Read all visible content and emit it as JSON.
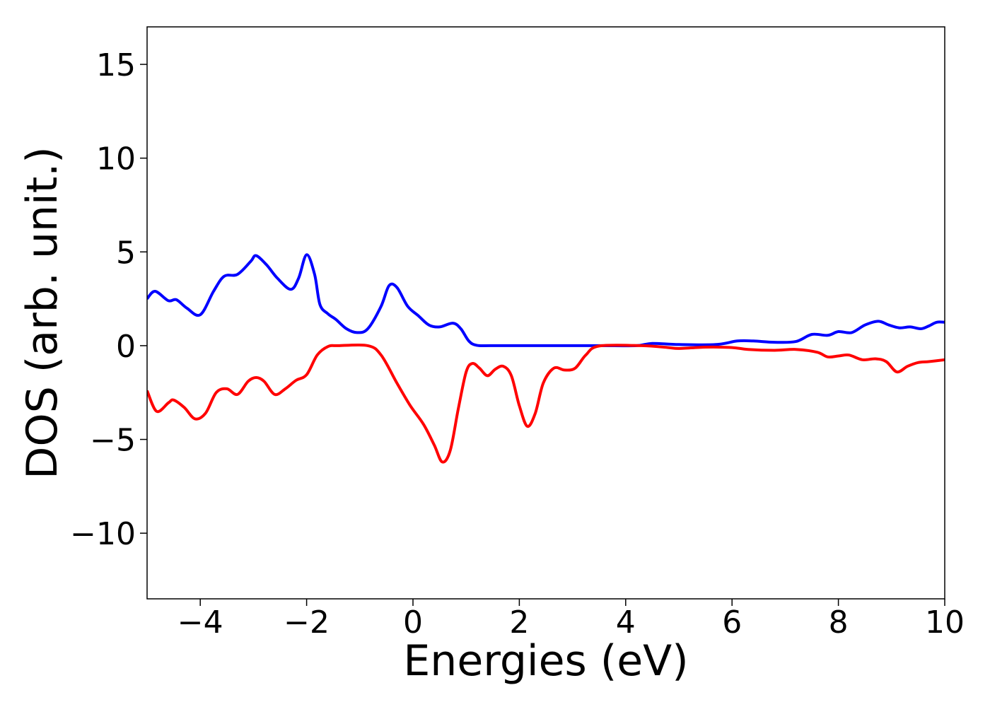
{
  "chart_data": {
    "type": "line",
    "title": "",
    "xlabel": "Energies (eV)",
    "ylabel": "DOS (arb. unit.)",
    "xlim": [
      -5,
      10
    ],
    "ylim": [
      -13.5,
      17
    ],
    "x_ticks": [
      -4,
      -2,
      0,
      2,
      4,
      6,
      8,
      10
    ],
    "x_tick_labels": [
      "−4",
      "−2",
      "0",
      "2",
      "4",
      "6",
      "8",
      "10"
    ],
    "y_ticks": [
      -10,
      -5,
      0,
      5,
      10,
      15
    ],
    "y_tick_labels": [
      "−10",
      "−5",
      "0",
      "5",
      "10",
      "15"
    ],
    "grid": false,
    "legend": "none",
    "series": [
      {
        "color": "#0000ff",
        "points": [
          [
            -5.0,
            2.5
          ],
          [
            -4.85,
            2.9
          ],
          [
            -4.6,
            2.4
          ],
          [
            -4.45,
            2.45
          ],
          [
            -4.25,
            2.0
          ],
          [
            -4.0,
            1.65
          ],
          [
            -3.75,
            2.9
          ],
          [
            -3.55,
            3.7
          ],
          [
            -3.3,
            3.8
          ],
          [
            -3.05,
            4.5
          ],
          [
            -2.95,
            4.8
          ],
          [
            -2.75,
            4.3
          ],
          [
            -2.55,
            3.6
          ],
          [
            -2.3,
            3.0
          ],
          [
            -2.15,
            3.6
          ],
          [
            -2.0,
            4.85
          ],
          [
            -1.85,
            3.8
          ],
          [
            -1.75,
            2.2
          ],
          [
            -1.6,
            1.7
          ],
          [
            -1.45,
            1.4
          ],
          [
            -1.25,
            0.9
          ],
          [
            -1.05,
            0.7
          ],
          [
            -0.85,
            0.9
          ],
          [
            -0.6,
            2.1
          ],
          [
            -0.45,
            3.2
          ],
          [
            -0.3,
            3.1
          ],
          [
            -0.1,
            2.1
          ],
          [
            0.1,
            1.6
          ],
          [
            0.3,
            1.1
          ],
          [
            0.5,
            1.0
          ],
          [
            0.75,
            1.2
          ],
          [
            0.9,
            0.9
          ],
          [
            1.05,
            0.25
          ],
          [
            1.2,
            0.02
          ],
          [
            1.5,
            0.0
          ],
          [
            2.5,
            0.0
          ],
          [
            3.5,
            0.0
          ],
          [
            4.2,
            0.0
          ],
          [
            4.5,
            0.12
          ],
          [
            5.0,
            0.06
          ],
          [
            5.7,
            0.06
          ],
          [
            6.1,
            0.25
          ],
          [
            6.4,
            0.25
          ],
          [
            6.8,
            0.18
          ],
          [
            7.2,
            0.22
          ],
          [
            7.5,
            0.6
          ],
          [
            7.8,
            0.55
          ],
          [
            8.0,
            0.75
          ],
          [
            8.25,
            0.7
          ],
          [
            8.5,
            1.1
          ],
          [
            8.75,
            1.3
          ],
          [
            8.95,
            1.1
          ],
          [
            9.15,
            0.95
          ],
          [
            9.35,
            1.0
          ],
          [
            9.55,
            0.9
          ],
          [
            9.7,
            1.05
          ],
          [
            9.85,
            1.25
          ],
          [
            10.0,
            1.25
          ]
        ]
      },
      {
        "color": "#ff0000",
        "points": [
          [
            -5.0,
            -2.4
          ],
          [
            -4.82,
            -3.5
          ],
          [
            -4.6,
            -3.05
          ],
          [
            -4.5,
            -2.9
          ],
          [
            -4.3,
            -3.3
          ],
          [
            -4.1,
            -3.9
          ],
          [
            -3.9,
            -3.6
          ],
          [
            -3.7,
            -2.5
          ],
          [
            -3.5,
            -2.3
          ],
          [
            -3.3,
            -2.6
          ],
          [
            -3.1,
            -1.9
          ],
          [
            -2.95,
            -1.7
          ],
          [
            -2.8,
            -1.9
          ],
          [
            -2.6,
            -2.6
          ],
          [
            -2.4,
            -2.3
          ],
          [
            -2.2,
            -1.85
          ],
          [
            -2.0,
            -1.55
          ],
          [
            -1.8,
            -0.5
          ],
          [
            -1.6,
            -0.05
          ],
          [
            -1.4,
            0.0
          ],
          [
            -0.85,
            0.0
          ],
          [
            -0.6,
            -0.5
          ],
          [
            -0.3,
            -2.0
          ],
          [
            -0.05,
            -3.2
          ],
          [
            0.2,
            -4.2
          ],
          [
            0.4,
            -5.3
          ],
          [
            0.55,
            -6.2
          ],
          [
            0.7,
            -5.6
          ],
          [
            0.85,
            -3.4
          ],
          [
            1.0,
            -1.4
          ],
          [
            1.12,
            -0.95
          ],
          [
            1.25,
            -1.2
          ],
          [
            1.4,
            -1.6
          ],
          [
            1.55,
            -1.25
          ],
          [
            1.7,
            -1.1
          ],
          [
            1.85,
            -1.6
          ],
          [
            2.0,
            -3.2
          ],
          [
            2.15,
            -4.3
          ],
          [
            2.3,
            -3.6
          ],
          [
            2.45,
            -2.0
          ],
          [
            2.65,
            -1.2
          ],
          [
            2.85,
            -1.3
          ],
          [
            3.05,
            -1.2
          ],
          [
            3.25,
            -0.5
          ],
          [
            3.5,
            -0.02
          ],
          [
            4.3,
            0.0
          ],
          [
            4.8,
            -0.1
          ],
          [
            5.0,
            -0.15
          ],
          [
            5.5,
            -0.08
          ],
          [
            6.0,
            -0.1
          ],
          [
            6.3,
            -0.2
          ],
          [
            6.8,
            -0.25
          ],
          [
            7.2,
            -0.2
          ],
          [
            7.6,
            -0.35
          ],
          [
            7.8,
            -0.6
          ],
          [
            8.0,
            -0.55
          ],
          [
            8.2,
            -0.5
          ],
          [
            8.45,
            -0.75
          ],
          [
            8.7,
            -0.7
          ],
          [
            8.9,
            -0.85
          ],
          [
            9.1,
            -1.4
          ],
          [
            9.3,
            -1.1
          ],
          [
            9.5,
            -0.9
          ],
          [
            9.7,
            -0.85
          ],
          [
            10.0,
            -0.75
          ]
        ]
      }
    ]
  }
}
